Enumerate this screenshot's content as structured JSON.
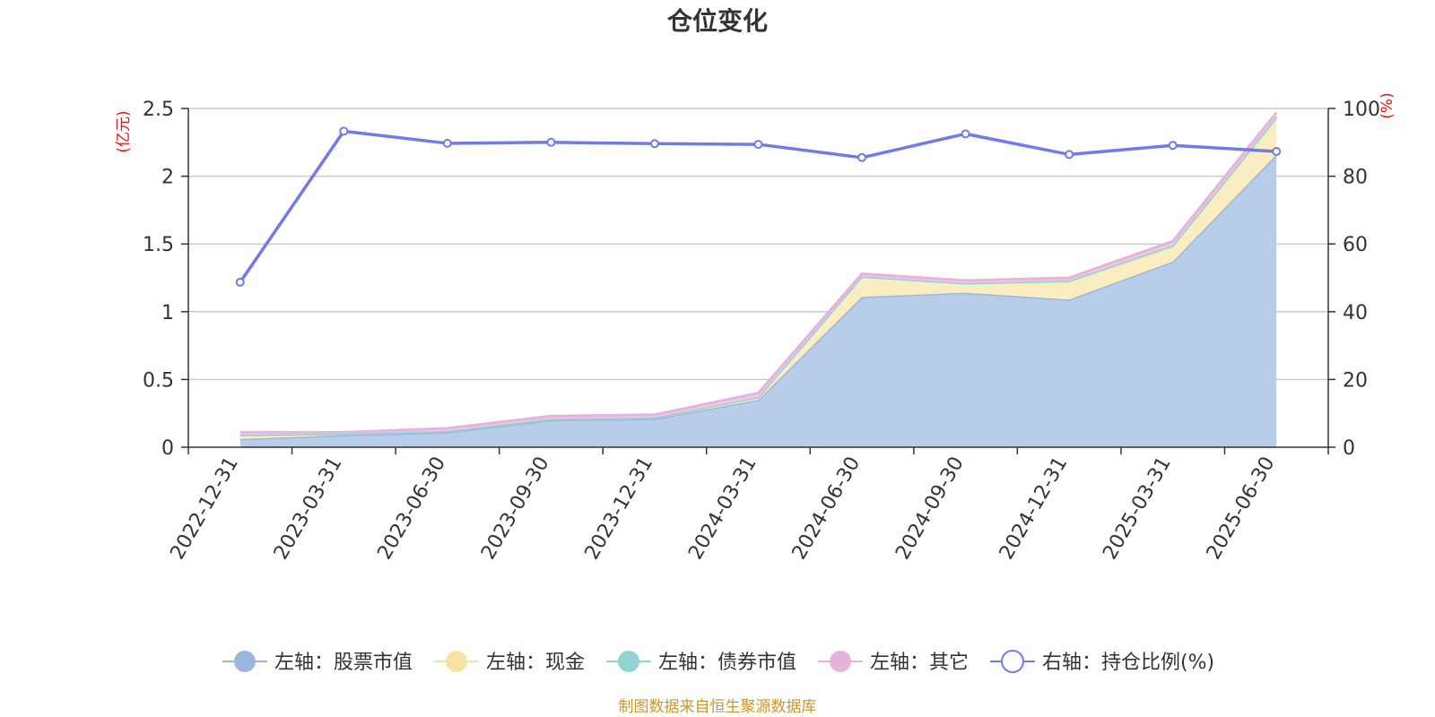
{
  "chart_data": {
    "type": "area",
    "title": "仓位变化",
    "x": [
      "2022-12-31",
      "2023-03-31",
      "2023-06-30",
      "2023-09-30",
      "2023-12-31",
      "2024-03-31",
      "2024-06-30",
      "2024-09-30",
      "2024-12-31",
      "2025-03-31",
      "2025-06-30"
    ],
    "y_left": {
      "unit": "(亿元)",
      "range": [
        0,
        2.5
      ],
      "ticks": [
        "0",
        "0.5",
        "1",
        "1.5",
        "2",
        "2.5"
      ],
      "stacked": true
    },
    "y_right": {
      "unit": "(%)",
      "range": [
        0,
        100
      ],
      "ticks": [
        "0",
        "20",
        "40",
        "60",
        "80",
        "100"
      ]
    },
    "grid": true,
    "legend_position": "bottom",
    "series": [
      {
        "name": "左轴：股票市值",
        "axis": "left",
        "kind": "stacked-area",
        "color": "#9bb7e0",
        "fill": "#b8cdea",
        "values": [
          0.06,
          0.09,
          0.11,
          0.2,
          0.21,
          0.35,
          1.11,
          1.14,
          1.09,
          1.37,
          2.16
        ]
      },
      {
        "name": "左轴：现金",
        "axis": "left",
        "kind": "stacked-area",
        "color": "#f7e3a1",
        "fill": "#faedc2",
        "values": [
          0.03,
          0.01,
          0.01,
          0.01,
          0.01,
          0.02,
          0.15,
          0.07,
          0.13,
          0.11,
          0.26
        ]
      },
      {
        "name": "左轴：债券市值",
        "axis": "left",
        "kind": "stacked-area",
        "color": "#8fd3d3",
        "fill": "#b5e2e2",
        "values": [
          0.0,
          0.0,
          0.0,
          0.0,
          0.0,
          0.0,
          0.0,
          0.0,
          0.01,
          0.01,
          0.02
        ]
      },
      {
        "name": "左轴：其它",
        "axis": "left",
        "kind": "stacked-area",
        "color": "#e6b3dd",
        "fill": "#efc9e8",
        "values": [
          0.02,
          0.01,
          0.02,
          0.02,
          0.02,
          0.03,
          0.02,
          0.02,
          0.02,
          0.03,
          0.03
        ]
      },
      {
        "name": "右轴：持仓比例(%)",
        "axis": "right",
        "kind": "line",
        "color": "#7479ea",
        "values": [
          48.7,
          93.3,
          89.7,
          90.0,
          89.6,
          89.4,
          85.5,
          92.5,
          86.4,
          89.1,
          87.3
        ]
      }
    ],
    "source": "制图数据来自恒生聚源数据库"
  }
}
